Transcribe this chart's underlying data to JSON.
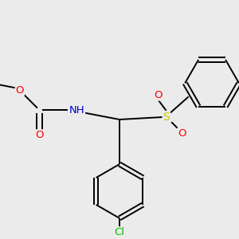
{
  "background_color": "#ebebeb",
  "bond_color": "#000000",
  "bond_lw": 1.4,
  "atom_colors": {
    "O": "#ff0000",
    "N": "#0000cc",
    "S": "#cccc00",
    "Cl": "#00bb00",
    "H": "#999999",
    "C": "#000000"
  },
  "fs": 9.5,
  "ring_r": 0.52
}
